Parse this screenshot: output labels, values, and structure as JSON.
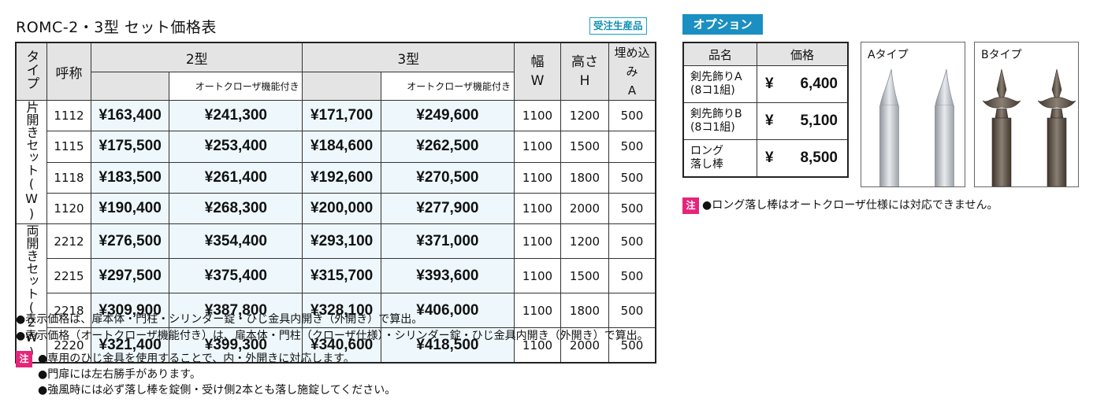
{
  "title": "ROMC-2・3型 セット価格表",
  "badge": "受注生産品",
  "table": {
    "head": {
      "type": "タイプ",
      "code": "呼称",
      "model2": "2型",
      "model3": "3型",
      "auto": "オートクローザ機能付き",
      "width": "幅\nW",
      "height": "高さ\nH",
      "embed": "埋め込み\nA"
    },
    "groups": [
      {
        "type": "片開きセット(W)",
        "rows": [
          {
            "code": "1112",
            "p2": "¥163,400",
            "p2a": "¥241,300",
            "p3": "¥171,700",
            "p3a": "¥249,600",
            "w": "1100",
            "h": "1200",
            "a": "500"
          },
          {
            "code": "1115",
            "p2": "¥175,500",
            "p2a": "¥253,400",
            "p3": "¥184,600",
            "p3a": "¥262,500",
            "w": "1100",
            "h": "1500",
            "a": "500"
          },
          {
            "code": "1118",
            "p2": "¥183,500",
            "p2a": "¥261,400",
            "p3": "¥192,600",
            "p3a": "¥270,500",
            "w": "1100",
            "h": "1800",
            "a": "500"
          },
          {
            "code": "1120",
            "p2": "¥190,400",
            "p2a": "¥268,300",
            "p3": "¥200,000",
            "p3a": "¥277,900",
            "w": "1100",
            "h": "2000",
            "a": "500"
          }
        ]
      },
      {
        "type": "両開きセット(2W)",
        "rows": [
          {
            "code": "2212",
            "p2": "¥276,500",
            "p2a": "¥354,400",
            "p3": "¥293,100",
            "p3a": "¥371,000",
            "w": "1100",
            "h": "1200",
            "a": "500"
          },
          {
            "code": "2215",
            "p2": "¥297,500",
            "p2a": "¥375,400",
            "p3": "¥315,700",
            "p3a": "¥393,600",
            "w": "1100",
            "h": "1500",
            "a": "500"
          },
          {
            "code": "2218",
            "p2": "¥309,900",
            "p2a": "¥387,800",
            "p3": "¥328,100",
            "p3a": "¥406,000",
            "w": "1100",
            "h": "1800",
            "a": "500"
          },
          {
            "code": "2220",
            "p2": "¥321,400",
            "p2a": "¥399,300",
            "p3": "¥340,600",
            "p3a": "¥418,500",
            "w": "1100",
            "h": "2000",
            "a": "500"
          }
        ]
      }
    ]
  },
  "notes": [
    "●表示価格は、扉本体・門柱・シリンダー錠・ひじ金具内開き（外開き）で算出。",
    "●表示価格（オートクローザ機能付き）は、扉本体・門柱（クローザ仕様）・シリンダー錠・ひじ金具内開き（外開き）で算出。"
  ],
  "caution_mark": "注",
  "caution_notes": [
    "●専用のひじ金具を使用することで、内・外開きに対応します。",
    "●門扉には左右勝手があります。",
    "●強風時には必ず落し棒を錠側・受け側2本とも落し施錠してください。"
  ],
  "options": {
    "header": "オプション",
    "col_name": "品名",
    "col_price": "価格",
    "items": [
      {
        "name": "剣先飾りA\n(8コ1組)",
        "yen": "¥",
        "price": "6,400"
      },
      {
        "name": "剣先飾りB\n(8コ1組)",
        "yen": "¥",
        "price": "5,100"
      },
      {
        "name": "ロング\n落し棒",
        "yen": "¥",
        "price": "8,500"
      }
    ],
    "image_a_label": "Aタイプ",
    "image_b_label": "Bタイプ",
    "note": "●ロング落し棒はオートクローザ仕様には対応できません。",
    "colors": {
      "accent_blue": "#1b8fc1",
      "caution_pink": "#e5257a",
      "a_finish": "#b7bcc2",
      "b_finish": "#5a4f45"
    }
  }
}
